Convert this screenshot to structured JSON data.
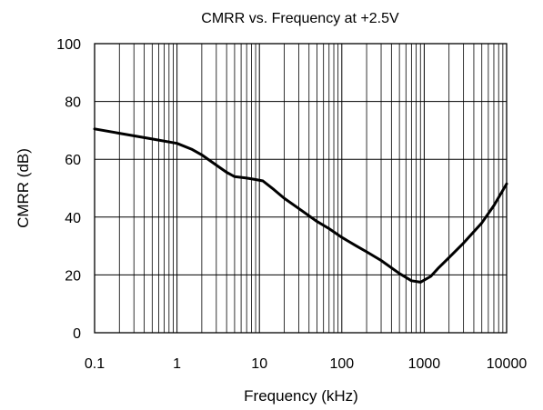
{
  "chart_data": {
    "type": "line",
    "title": "CMRR vs. Frequency at +2.5V",
    "xlabel": "Frequency (kHz)",
    "ylabel": "CMRR (dB)",
    "xscale": "log",
    "xlim": [
      0.1,
      10000
    ],
    "ylim": [
      0,
      100
    ],
    "grid": true,
    "legend": "none",
    "line_color": "#000000",
    "x_ticks": [
      {
        "value": 0.1,
        "label": "0.1"
      },
      {
        "value": 1,
        "label": "1"
      },
      {
        "value": 10,
        "label": "10"
      },
      {
        "value": 100,
        "label": "100"
      },
      {
        "value": 1000,
        "label": "1000"
      },
      {
        "value": 10000,
        "label": "10000"
      }
    ],
    "y_ticks": [
      {
        "value": 0,
        "label": "0"
      },
      {
        "value": 20,
        "label": "20"
      },
      {
        "value": 40,
        "label": "40"
      },
      {
        "value": 60,
        "label": "60"
      },
      {
        "value": 80,
        "label": "80"
      },
      {
        "value": 100,
        "label": "100"
      }
    ],
    "series": [
      {
        "x": [
          0.1,
          0.2,
          0.5,
          1,
          1.5,
          2,
          3,
          4,
          5,
          7,
          9,
          11,
          15,
          20,
          30,
          50,
          70,
          100,
          150,
          200,
          300,
          500,
          700,
          900,
          1200,
          1500,
          2000,
          3000,
          5000,
          7000,
          10000
        ],
        "y": [
          70.5,
          69,
          67,
          65.5,
          63.5,
          61.5,
          58,
          55.5,
          54,
          53.5,
          53,
          52.5,
          49.5,
          46.5,
          43,
          38.5,
          36,
          33,
          30,
          28,
          25,
          20.5,
          18,
          17.5,
          19.5,
          22.5,
          26,
          31,
          38,
          44,
          51.5
        ]
      }
    ]
  }
}
